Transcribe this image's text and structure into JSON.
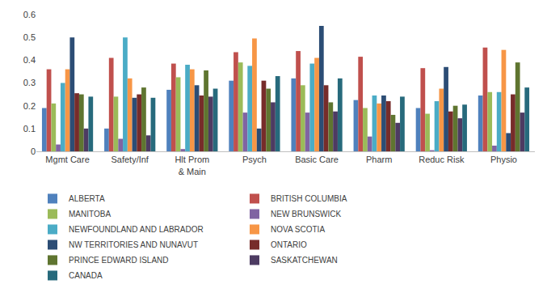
{
  "chart_data": {
    "type": "bar",
    "categories": [
      "Mgmt Care",
      "Safety/Inf",
      "Hlt Prom & Main",
      "Psych",
      "Basic Care",
      "Pharm",
      "Reduc Risk",
      "Physio"
    ],
    "series": [
      {
        "name": "ALBERTA",
        "color": "#4f81bd",
        "values": [
          0.19,
          0.1,
          0.27,
          0.31,
          0.32,
          0.225,
          0.19,
          0.245
        ]
      },
      {
        "name": "BRITISH COLUMBIA",
        "color": "#c0504d",
        "values": [
          0.36,
          0.41,
          0.385,
          0.435,
          0.44,
          0.415,
          0.365,
          0.455
        ]
      },
      {
        "name": "MANITOBA",
        "color": "#9bbb59",
        "values": [
          0.21,
          0.24,
          0.325,
          0.39,
          0.29,
          0.19,
          0.165,
          0.26
        ]
      },
      {
        "name": "NEW BRUNSWICK",
        "color": "#8064a2",
        "values": [
          0.03,
          0.055,
          0.01,
          0.17,
          0.17,
          0.065,
          0.005,
          0.025
        ]
      },
      {
        "name": "NEWFOUNDLAND AND LABRADOR",
        "color": "#4bacc6",
        "values": [
          0.3,
          0.5,
          0.38,
          0.375,
          0.385,
          0.245,
          0.22,
          0.26
        ]
      },
      {
        "name": "NOVA SCOTIA",
        "color": "#f79646",
        "values": [
          0.36,
          0.32,
          0.36,
          0.495,
          0.41,
          0.21,
          0.275,
          0.445
        ]
      },
      {
        "name": "NW TERRITORIES AND NUNAVUT",
        "color": "#2c4d75",
        "values": [
          0.5,
          0.235,
          0.29,
          0.1,
          0.55,
          0.245,
          0.37,
          0.08
        ]
      },
      {
        "name": "ONTARIO",
        "color": "#772c2a",
        "values": [
          0.255,
          0.25,
          0.245,
          0.31,
          0.29,
          0.22,
          0.175,
          0.25
        ]
      },
      {
        "name": "PRINCE EDWARD ISLAND",
        "color": "#5f7530",
        "values": [
          0.25,
          0.28,
          0.355,
          0.275,
          0.215,
          0.16,
          0.2,
          0.39
        ]
      },
      {
        "name": "SASKATCHEWAN",
        "color": "#4d3b62",
        "values": [
          0.1,
          0.07,
          0.24,
          0.215,
          0.175,
          0.125,
          0.145,
          0.17
        ]
      },
      {
        "name": "CANADA",
        "color": "#276a7c",
        "values": [
          0.24,
          0.235,
          0.275,
          0.33,
          0.32,
          0.24,
          0.205,
          0.28
        ]
      }
    ],
    "ylim": [
      0,
      0.6
    ],
    "yticks": [
      0,
      0.1,
      0.2,
      0.3,
      0.4,
      0.5,
      0.6
    ],
    "grid": false,
    "legend": "bottom"
  }
}
